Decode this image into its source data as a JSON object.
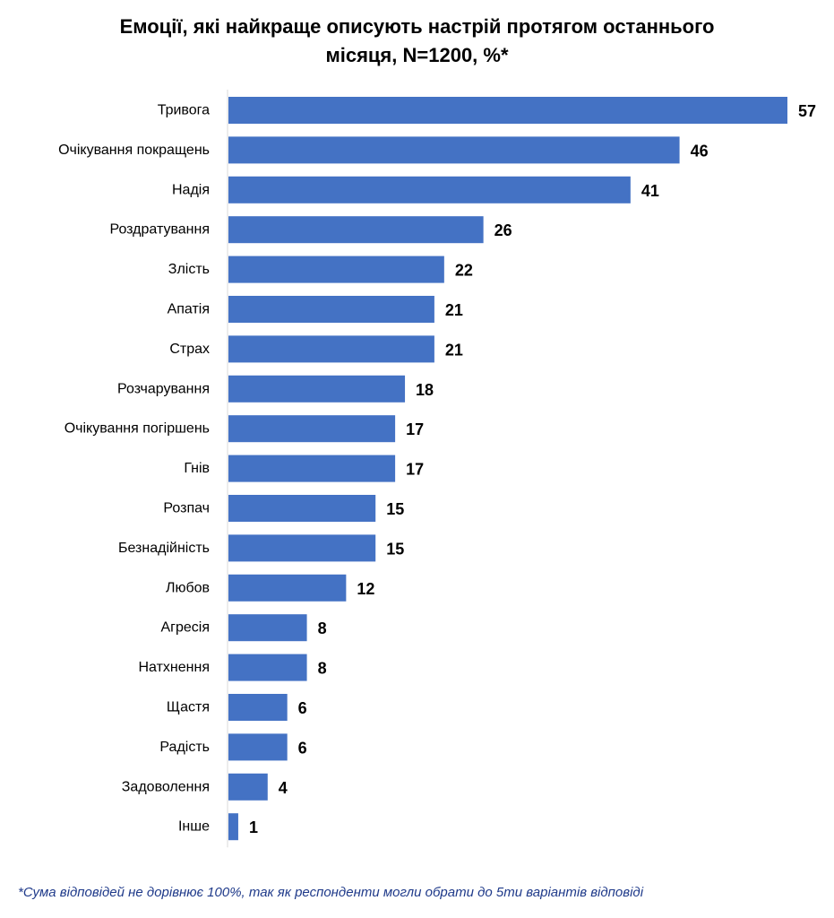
{
  "title_line1": "Емоції, які найкраще описують настрій протягом останнього",
  "title_line2": "місяця, N=1200, %*",
  "footnote": "*Сума відповідей не дорівнює 100%, так як респонденти могли обрати до 5ти варіантів відповіді",
  "chart_data": {
    "type": "bar",
    "orientation": "horizontal",
    "title": "Емоції, які найкраще описують настрій протягом останнього місяця, N=1200, %*",
    "categories": [
      "Тривога",
      "Очікування покращень",
      "Надія",
      "Роздратування",
      "Злість",
      "Апатія",
      "Страх",
      "Розчарування",
      "Очікування погіршень",
      "Гнів",
      "Розпач",
      "Безнадійність",
      "Любов",
      "Агресія",
      "Натхнення",
      "Щастя",
      "Радість",
      "Задоволення",
      "Інше"
    ],
    "values": [
      57,
      46,
      41,
      26,
      22,
      21,
      21,
      18,
      17,
      17,
      15,
      15,
      12,
      8,
      8,
      6,
      6,
      4,
      1
    ],
    "bar_color": "#4472C4",
    "axis_color": "#D9D9D9",
    "data_labels": true,
    "grid": false,
    "xlim": [
      0,
      57
    ]
  }
}
